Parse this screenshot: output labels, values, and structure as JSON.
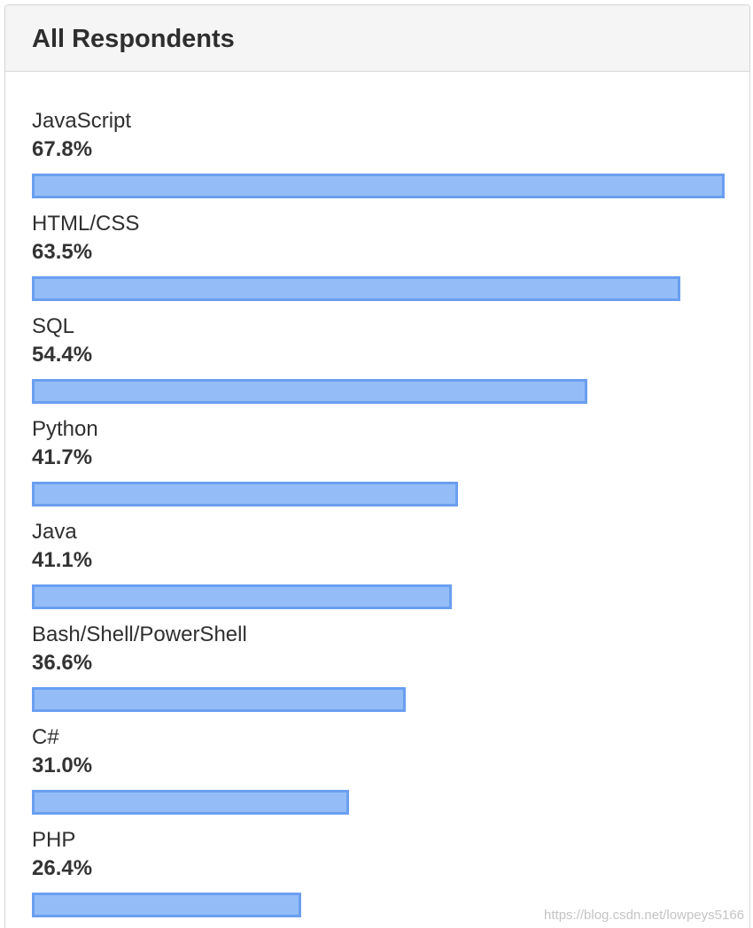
{
  "panel": {
    "title": "All Respondents"
  },
  "chart_data": {
    "type": "bar",
    "orientation": "horizontal",
    "title": "All Respondents",
    "categories": [
      "JavaScript",
      "HTML/CSS",
      "SQL",
      "Python",
      "Java",
      "Bash/Shell/PowerShell",
      "C#",
      "PHP"
    ],
    "values": [
      67.8,
      63.5,
      54.4,
      41.7,
      41.1,
      36.6,
      31.0,
      26.4
    ],
    "value_labels": [
      "67.8%",
      "63.5%",
      "54.4%",
      "41.7%",
      "41.1%",
      "36.6%",
      "31.0%",
      "26.4%"
    ],
    "xlim": [
      0,
      67.8
    ],
    "grid": false,
    "legend": "none",
    "colors": {
      "bar_fill": "#94bdf7",
      "bar_border": "#6a9ff0"
    }
  },
  "watermark": "https://blog.csdn.net/lowpeys5166"
}
